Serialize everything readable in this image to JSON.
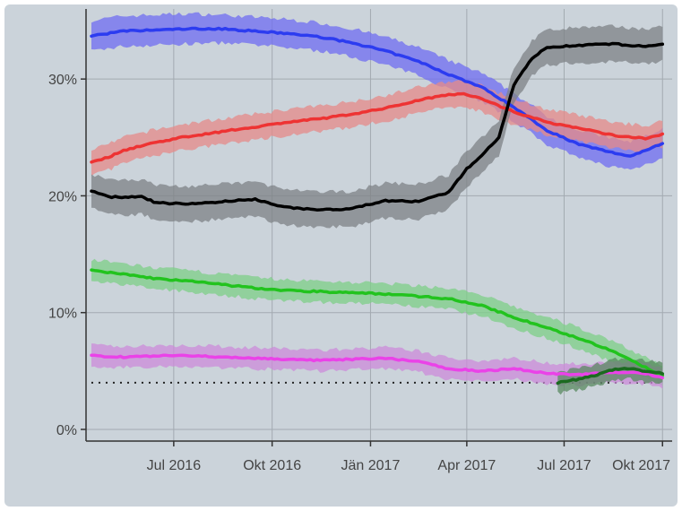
{
  "chart_data": {
    "type": "line",
    "title": "",
    "xlabel": "",
    "ylabel": "",
    "x_ticks": [
      {
        "label": "Jul 2016",
        "date": "2016-07-01"
      },
      {
        "label": "Okt 2016",
        "date": "2016-10-01"
      },
      {
        "label": "Jän 2017",
        "date": "2017-01-01"
      },
      {
        "label": "Apr 2017",
        "date": "2017-04-01"
      },
      {
        "label": "Jul 2017",
        "date": "2017-07-01"
      },
      {
        "label": "Okt 2017",
        "date": "2017-10-01"
      }
    ],
    "y_ticks": [
      {
        "label": "0%",
        "value": 0
      },
      {
        "label": "10%",
        "value": 10
      },
      {
        "label": "20%",
        "value": 20
      },
      {
        "label": "30%",
        "value": 30
      }
    ],
    "xlim": [
      "2016-04-10",
      "2017-10-10"
    ],
    "ylim": [
      -1,
      36
    ],
    "grid": true,
    "legend": "none",
    "reference_line": {
      "value": 4,
      "style": "dotted",
      "color": "#222222"
    },
    "series": [
      {
        "color": "#2c3cf0",
        "band_color": "#6f6cf2",
        "points": [
          [
            "2016-04-15",
            33.7,
            1.3
          ],
          [
            "2016-05-15",
            34.1,
            1.3
          ],
          [
            "2016-06-15",
            34.2,
            1.3
          ],
          [
            "2016-07-15",
            34.3,
            1.3
          ],
          [
            "2016-08-15",
            34.3,
            1.2
          ],
          [
            "2016-09-15",
            34.1,
            1.2
          ],
          [
            "2016-10-15",
            33.9,
            1.2
          ],
          [
            "2016-11-15",
            33.6,
            1.2
          ],
          [
            "2016-12-15",
            33.1,
            1.2
          ],
          [
            "2017-01-15",
            32.4,
            1.2
          ],
          [
            "2017-02-15",
            31.5,
            1.2
          ],
          [
            "2017-03-15",
            30.4,
            1.2
          ],
          [
            "2017-04-15",
            29.3,
            1.2
          ],
          [
            "2017-05-15",
            27.6,
            1.2
          ],
          [
            "2017-06-15",
            25.6,
            1.2
          ],
          [
            "2017-07-15",
            24.4,
            1.2
          ],
          [
            "2017-08-15",
            23.7,
            1.2
          ],
          [
            "2017-09-01",
            23.4,
            1.2
          ],
          [
            "2017-09-15",
            23.9,
            1.2
          ],
          [
            "2017-10-01",
            24.5,
            1.2
          ]
        ]
      },
      {
        "color": "#ee3333",
        "band_color": "#e68a88",
        "points": [
          [
            "2016-04-15",
            22.9,
            1.1
          ],
          [
            "2016-05-01",
            23.3,
            1.1
          ],
          [
            "2016-05-15",
            23.9,
            1.1
          ],
          [
            "2016-06-15",
            24.6,
            1.1
          ],
          [
            "2016-07-15",
            25.1,
            1.1
          ],
          [
            "2016-08-15",
            25.5,
            1.1
          ],
          [
            "2016-09-15",
            25.9,
            1.1
          ],
          [
            "2016-10-15",
            26.3,
            1.1
          ],
          [
            "2016-11-15",
            26.6,
            1.1
          ],
          [
            "2016-12-15",
            27.0,
            1.1
          ],
          [
            "2017-01-15",
            27.5,
            1.1
          ],
          [
            "2017-02-15",
            28.2,
            1.1
          ],
          [
            "2017-03-15",
            28.7,
            1.1
          ],
          [
            "2017-04-01",
            28.7,
            1.1
          ],
          [
            "2017-04-15",
            28.3,
            1.1
          ],
          [
            "2017-05-15",
            27.2,
            1.1
          ],
          [
            "2017-06-15",
            26.3,
            1.1
          ],
          [
            "2017-07-15",
            25.8,
            1.1
          ],
          [
            "2017-08-15",
            25.2,
            1.1
          ],
          [
            "2017-09-15",
            24.9,
            1.1
          ],
          [
            "2017-10-01",
            25.3,
            1.1
          ]
        ]
      },
      {
        "color": "#000000",
        "band_color": "#7d8186",
        "points": [
          [
            "2016-04-15",
            20.4,
            1.5
          ],
          [
            "2016-05-01",
            19.9,
            1.5
          ],
          [
            "2016-06-01",
            19.9,
            1.5
          ],
          [
            "2016-06-15",
            19.4,
            1.5
          ],
          [
            "2016-07-15",
            19.3,
            1.5
          ],
          [
            "2016-08-15",
            19.5,
            1.5
          ],
          [
            "2016-09-15",
            19.7,
            1.5
          ],
          [
            "2016-10-15",
            19.0,
            1.5
          ],
          [
            "2016-11-15",
            18.8,
            1.5
          ],
          [
            "2016-12-15",
            18.9,
            1.5
          ],
          [
            "2017-01-15",
            19.6,
            1.5
          ],
          [
            "2017-02-15",
            19.5,
            1.5
          ],
          [
            "2017-03-15",
            20.3,
            1.5
          ],
          [
            "2017-04-01",
            22.3,
            1.5
          ],
          [
            "2017-04-15",
            23.5,
            1.5
          ],
          [
            "2017-05-01",
            25.0,
            1.5
          ],
          [
            "2017-05-15",
            29.5,
            1.5
          ],
          [
            "2017-06-01",
            31.8,
            1.5
          ],
          [
            "2017-06-15",
            32.7,
            1.5
          ],
          [
            "2017-07-15",
            32.9,
            1.5
          ],
          [
            "2017-08-15",
            33.0,
            1.5
          ],
          [
            "2017-09-15",
            32.8,
            1.5
          ],
          [
            "2017-10-01",
            33.0,
            1.5
          ]
        ]
      },
      {
        "color": "#22c31e",
        "band_color": "#7ecf87",
        "points": [
          [
            "2016-04-15",
            13.6,
            0.9
          ],
          [
            "2016-05-15",
            13.3,
            0.9
          ],
          [
            "2016-06-15",
            12.9,
            0.9
          ],
          [
            "2016-07-15",
            12.7,
            0.9
          ],
          [
            "2016-08-15",
            12.4,
            0.9
          ],
          [
            "2016-09-15",
            12.1,
            0.9
          ],
          [
            "2016-10-15",
            11.9,
            0.9
          ],
          [
            "2016-11-15",
            11.8,
            0.9
          ],
          [
            "2016-12-15",
            11.7,
            0.9
          ],
          [
            "2017-01-15",
            11.6,
            0.9
          ],
          [
            "2017-02-15",
            11.4,
            0.9
          ],
          [
            "2017-03-15",
            11.2,
            0.9
          ],
          [
            "2017-04-15",
            10.6,
            0.9
          ],
          [
            "2017-05-15",
            9.6,
            0.9
          ],
          [
            "2017-06-15",
            8.7,
            0.9
          ],
          [
            "2017-07-15",
            7.8,
            0.9
          ],
          [
            "2017-08-15",
            6.7,
            0.9
          ],
          [
            "2017-09-15",
            5.3,
            0.9
          ],
          [
            "2017-10-01",
            4.6,
            0.9
          ]
        ]
      },
      {
        "color": "#ea42e8",
        "band_color": "#cc8bd9",
        "points": [
          [
            "2016-04-15",
            6.3,
            0.9
          ],
          [
            "2016-05-15",
            6.2,
            0.9
          ],
          [
            "2016-06-15",
            6.3,
            0.9
          ],
          [
            "2016-07-15",
            6.3,
            0.9
          ],
          [
            "2016-08-15",
            6.2,
            0.9
          ],
          [
            "2016-09-15",
            6.1,
            0.9
          ],
          [
            "2016-10-15",
            6.0,
            0.9
          ],
          [
            "2016-11-15",
            5.9,
            0.9
          ],
          [
            "2016-12-15",
            6.0,
            0.9
          ],
          [
            "2017-01-15",
            6.1,
            0.9
          ],
          [
            "2017-02-15",
            5.8,
            0.9
          ],
          [
            "2017-03-15",
            5.2,
            0.9
          ],
          [
            "2017-04-15",
            5.0,
            0.9
          ],
          [
            "2017-05-15",
            5.2,
            0.9
          ],
          [
            "2017-06-15",
            4.8,
            0.9
          ],
          [
            "2017-07-15",
            4.7,
            0.9
          ],
          [
            "2017-08-15",
            4.9,
            0.9
          ],
          [
            "2017-09-15",
            4.8,
            0.9
          ],
          [
            "2017-10-01",
            4.4,
            0.9
          ]
        ]
      },
      {
        "color": "#1b6a1f",
        "band_color": "#5a8a60",
        "points": [
          [
            "2017-06-25",
            4.0,
            0.9
          ],
          [
            "2017-07-15",
            4.3,
            0.9
          ],
          [
            "2017-08-01",
            4.7,
            0.9
          ],
          [
            "2017-08-15",
            5.1,
            0.9
          ],
          [
            "2017-09-01",
            5.2,
            0.9
          ],
          [
            "2017-09-15",
            5.0,
            0.9
          ],
          [
            "2017-10-01",
            4.8,
            0.9
          ]
        ]
      }
    ]
  }
}
